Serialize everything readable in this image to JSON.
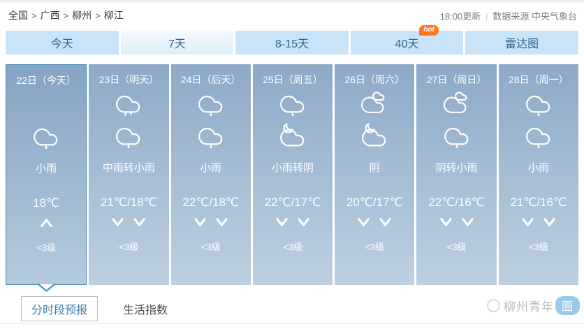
{
  "colors": {
    "tab-bg": "#c9e4f8",
    "tab-text": "#33618c",
    "hot-badge": "#ff7a1a",
    "col-top": "#8ea9c7",
    "col-bottom": "#bdd0e1",
    "col-selected-border": "#3e87b5",
    "link-blue": "#3b7fab",
    "watermark-pill": "#58a8d9",
    "notch-stroke": "#3e96c8"
  },
  "breadcrumb": {
    "items": [
      "全国",
      "广西",
      "柳州",
      "柳江"
    ],
    "separator": ">"
  },
  "update_info": {
    "time": "18:00更新",
    "divider": "|",
    "source": "数据来源 中央气象台"
  },
  "tabs": [
    {
      "label": "今天",
      "selected": false
    },
    {
      "label": "7天",
      "selected": true
    },
    {
      "label": "8-15天",
      "selected": false
    },
    {
      "label": "40天",
      "selected": false,
      "badge": "hot"
    },
    {
      "label": "雷达图",
      "selected": false
    }
  ],
  "days": [
    {
      "date": "22日（今天）",
      "selected": true,
      "icons": [
        null,
        "rain"
      ],
      "weather": "小雨",
      "temp": "18℃",
      "wind": [
        "up"
      ],
      "wind_level": "<3级"
    },
    {
      "date": "23日（明天）",
      "selected": false,
      "icons": [
        "rain2",
        "rain"
      ],
      "weather": "中雨转小雨",
      "temp": "21℃/18℃",
      "wind": [
        "down",
        "down"
      ],
      "wind_level": "<3级"
    },
    {
      "date": "24日（后天）",
      "selected": false,
      "icons": [
        "rain",
        "rain"
      ],
      "weather": "小雨",
      "temp": "22℃/18℃",
      "wind": [
        "down",
        "down"
      ],
      "wind_level": "<3级"
    },
    {
      "date": "25日（周五）",
      "selected": false,
      "icons": [
        "rain",
        "overcast-night"
      ],
      "weather": "小雨转阴",
      "temp": "22℃/17℃",
      "wind": [
        "down",
        "down"
      ],
      "wind_level": "<3级"
    },
    {
      "date": "26日（周六）",
      "selected": false,
      "icons": [
        "overcast",
        "overcast-night"
      ],
      "weather": "阴",
      "temp": "20℃/17℃",
      "wind": [
        "down",
        "down"
      ],
      "wind_level": "<3级"
    },
    {
      "date": "27日（周日）",
      "selected": false,
      "icons": [
        "overcast",
        "rain"
      ],
      "weather": "阴转小雨",
      "temp": "22℃/16℃",
      "wind": [
        "down",
        "down"
      ],
      "wind_level": "<3级"
    },
    {
      "date": "28日（周一）",
      "selected": false,
      "icons": [
        "rain",
        "rain"
      ],
      "weather": "小雨",
      "temp": "21℃/16℃",
      "wind": [
        "down",
        "down"
      ],
      "wind_level": "<3级"
    }
  ],
  "bottom_tabs": [
    {
      "label": "分时段预报",
      "selected": true
    },
    {
      "label": "生活指数",
      "selected": false
    }
  ],
  "watermark": {
    "text_prefix": "柳州青年",
    "pill_text": "圈"
  }
}
